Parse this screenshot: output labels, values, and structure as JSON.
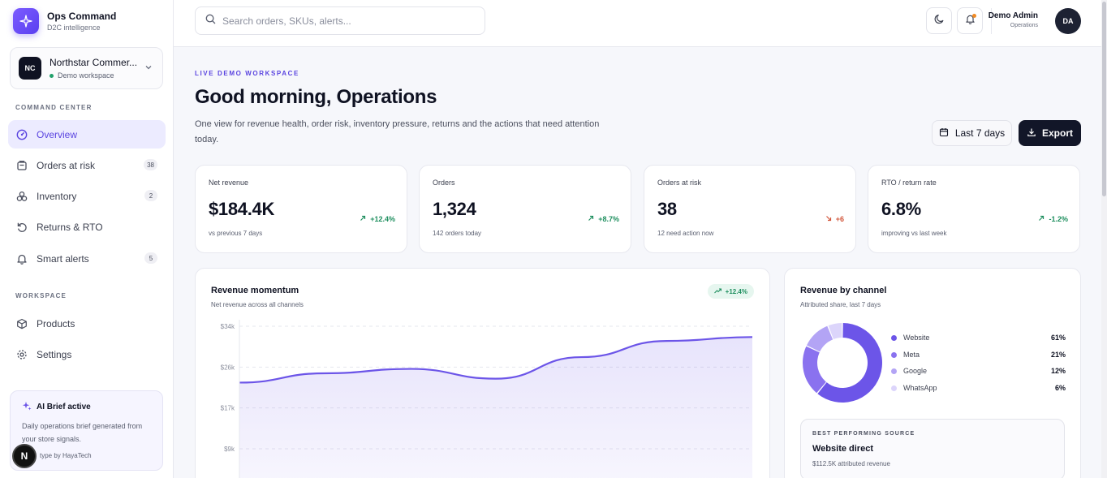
{
  "brand": {
    "name": "Ops Command",
    "sub": "D2C intelligence"
  },
  "workspace": {
    "initials": "NC",
    "name": "Northstar Commer...",
    "status": "Demo workspace"
  },
  "nav": {
    "section_command": "COMMAND CENTER",
    "section_workspace": "WORKSPACE",
    "items": [
      {
        "label": "Overview",
        "icon": "overview-icon",
        "active": true
      },
      {
        "label": "Orders at risk",
        "icon": "orders-icon",
        "badge": "38"
      },
      {
        "label": "Inventory",
        "icon": "inventory-icon",
        "badge": "2"
      },
      {
        "label": "Returns & RTO",
        "icon": "returns-icon"
      },
      {
        "label": "Smart alerts",
        "icon": "bell-icon",
        "badge": "5"
      }
    ],
    "workspace_items": [
      {
        "label": "Products",
        "icon": "products-icon"
      },
      {
        "label": "Settings",
        "icon": "settings-icon"
      }
    ]
  },
  "ai_brief": {
    "title": "AI Brief active",
    "desc": "Daily operations brief generated from your store signals.",
    "foot": "type by HayaTech",
    "badge": "N"
  },
  "topbar": {
    "search_placeholder": "Search orders, SKUs, alerts...",
    "user_name": "Demo Admin",
    "user_role": "Operations",
    "user_initials": "DA"
  },
  "header": {
    "eyebrow": "LIVE DEMO WORKSPACE",
    "title": "Good morning, Operations",
    "desc": "One view for revenue health, order risk, inventory pressure, returns and the actions that need attention today.",
    "range_label": "Last 7 days",
    "export_label": "Export"
  },
  "kpis": [
    {
      "label": "Net revenue",
      "value": "$184.4K",
      "sub": "vs previous 7 days",
      "delta": "+12.4%",
      "direction": "up"
    },
    {
      "label": "Orders",
      "value": "1,324",
      "sub": "142 orders today",
      "delta": "+8.7%",
      "direction": "up"
    },
    {
      "label": "Orders at risk",
      "value": "38",
      "sub": "12 need action now",
      "delta": "+6",
      "direction": "down"
    },
    {
      "label": "RTO / return rate",
      "value": "6.8%",
      "sub": "improving vs last week",
      "delta": "-1.2%",
      "direction": "up"
    }
  ],
  "revenue_panel": {
    "title": "Revenue momentum",
    "sub": "Net revenue across all channels",
    "pill": "+12.4%"
  },
  "channel_panel": {
    "title": "Revenue by channel",
    "sub": "Attributed share, last 7 days",
    "best_label": "BEST PERFORMING SOURCE",
    "best_title": "Website direct",
    "best_sub": "$112.5K attributed revenue"
  },
  "chart_data": [
    {
      "type": "area",
      "title": "Revenue momentum",
      "yticks": [
        "$34k",
        "$26k",
        "$17k",
        "$9k"
      ],
      "ylim": [
        9000,
        34000
      ],
      "x": [
        0,
        1,
        2,
        3,
        4,
        5,
        6
      ],
      "values": [
        22500,
        24400,
        25300,
        23300,
        27700,
        31000,
        31800
      ],
      "grid": true,
      "color": "#6c55e8"
    },
    {
      "type": "pie",
      "title": "Revenue by channel",
      "categories": [
        "Website",
        "Meta",
        "Google",
        "WhatsApp"
      ],
      "values": [
        61,
        21,
        12,
        6
      ],
      "labels": [
        "61%",
        "21%",
        "12%",
        "6%"
      ],
      "colors": [
        "#6c55e8",
        "#8a72ef",
        "#b3a4f5",
        "#dcd5fb"
      ]
    }
  ]
}
